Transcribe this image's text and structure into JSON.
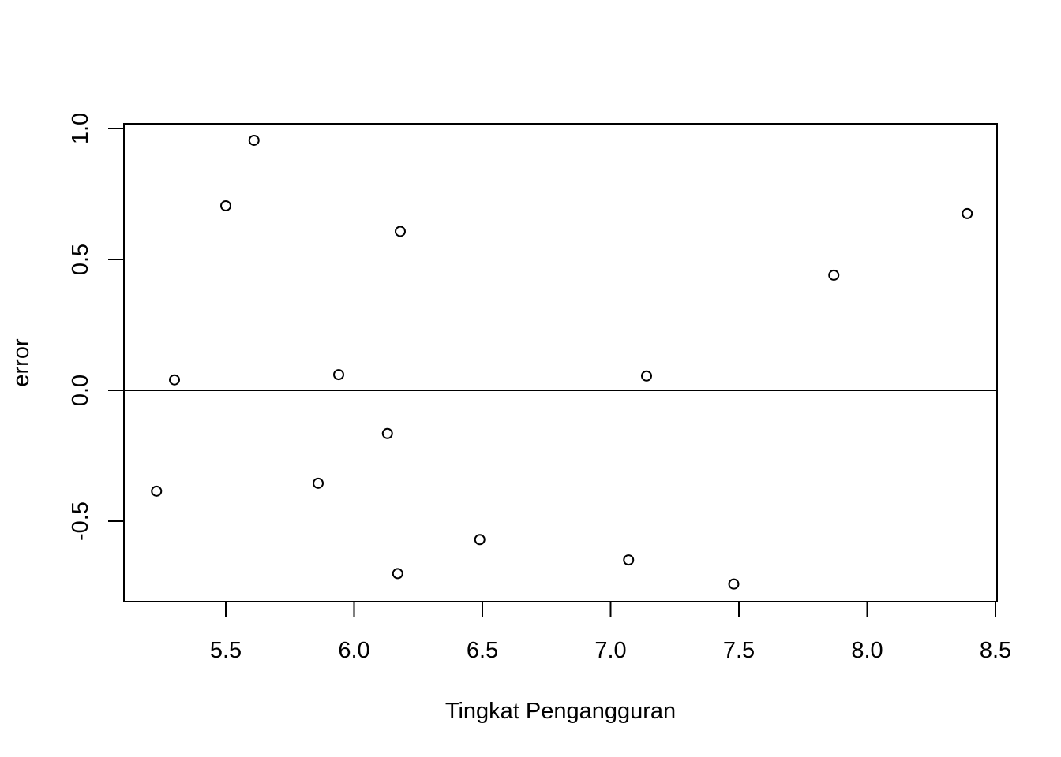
{
  "chart_data": {
    "type": "scatter",
    "title": "",
    "xlabel": "Tingkat Pengangguran",
    "ylabel": "error",
    "xlim": [
      5.1,
      8.5
    ],
    "ylim": [
      -0.8,
      1.02
    ],
    "x_ticks": [
      "5.5",
      "6.0",
      "6.5",
      "7.0",
      "7.5",
      "8.0",
      "8.5"
    ],
    "y_ticks": [
      "-0.5",
      "0.0",
      "0.5",
      "1.0"
    ],
    "reference_line_y": 0,
    "grid": false,
    "marker": "open-circle",
    "points": [
      {
        "x": 5.23,
        "y": -0.385
      },
      {
        "x": 5.3,
        "y": 0.04
      },
      {
        "x": 5.5,
        "y": 0.705
      },
      {
        "x": 5.61,
        "y": 0.955
      },
      {
        "x": 5.86,
        "y": -0.355
      },
      {
        "x": 5.94,
        "y": 0.06
      },
      {
        "x": 6.13,
        "y": -0.165
      },
      {
        "x": 6.17,
        "y": -0.7
      },
      {
        "x": 6.18,
        "y": 0.607
      },
      {
        "x": 6.49,
        "y": -0.57
      },
      {
        "x": 7.07,
        "y": -0.648
      },
      {
        "x": 7.14,
        "y": 0.055
      },
      {
        "x": 7.48,
        "y": -0.74
      },
      {
        "x": 7.87,
        "y": 0.44
      },
      {
        "x": 8.39,
        "y": 0.675
      }
    ]
  }
}
